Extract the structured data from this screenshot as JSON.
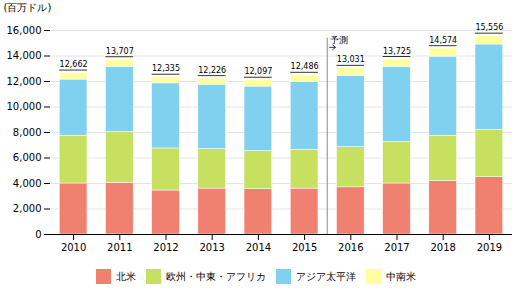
{
  "chart_data": {
    "type": "bar",
    "stacked": true,
    "categories": [
      "2010",
      "2011",
      "2012",
      "2013",
      "2014",
      "2015",
      "2016",
      "2017",
      "2018",
      "2019"
    ],
    "series": [
      {
        "name": "北米",
        "color": "#f08070",
        "values": [
          4000,
          4050,
          3450,
          3600,
          3550,
          3600,
          3700,
          4000,
          4200,
          4500
        ]
      },
      {
        "name": "欧州・中東・アフリカ",
        "color": "#c8e060",
        "values": [
          3750,
          4000,
          3300,
          3100,
          3000,
          3050,
          3150,
          3250,
          3550,
          3700
        ]
      },
      {
        "name": "アジア太平洋",
        "color": "#80d0f0",
        "values": [
          4400,
          5100,
          5100,
          5050,
          5050,
          5300,
          5600,
          5900,
          6200,
          6700
        ]
      },
      {
        "name": "中南米",
        "color": "#ffffa0",
        "values": [
          512,
          557,
          485,
          476,
          497,
          536,
          581,
          575,
          624,
          656
        ]
      }
    ],
    "totals": [
      12662,
      13707,
      12335,
      12226,
      12097,
      12486,
      13031,
      13725,
      14574,
      15556
    ],
    "total_labels": [
      "12,662",
      "13,707",
      "12,335",
      "12,226",
      "12,097",
      "12,486",
      "13,031",
      "13,725",
      "14,574",
      "15,556"
    ],
    "ylabel": "(百万ドル)",
    "annotations": [
      {
        "text": "予測",
        "x": "2016"
      }
    ],
    "ylim": [
      0,
      16000
    ],
    "yticks": [
      0,
      {
        "value": 2000,
        "label": "2,000"
      },
      {
        "value": 4000,
        "label": "4,000"
      },
      {
        "value": 6000,
        "label": "6,000"
      },
      {
        "value": 8000,
        "label": "8,000"
      },
      {
        "value": 10000,
        "label": "10,000"
      },
      {
        "value": 12000,
        "label": "12,000"
      },
      {
        "value": 14000,
        "label": "14,000"
      },
      {
        "value": 16000,
        "label": "16,000"
      }
    ],
    "grid": true,
    "legend": "bottom"
  }
}
